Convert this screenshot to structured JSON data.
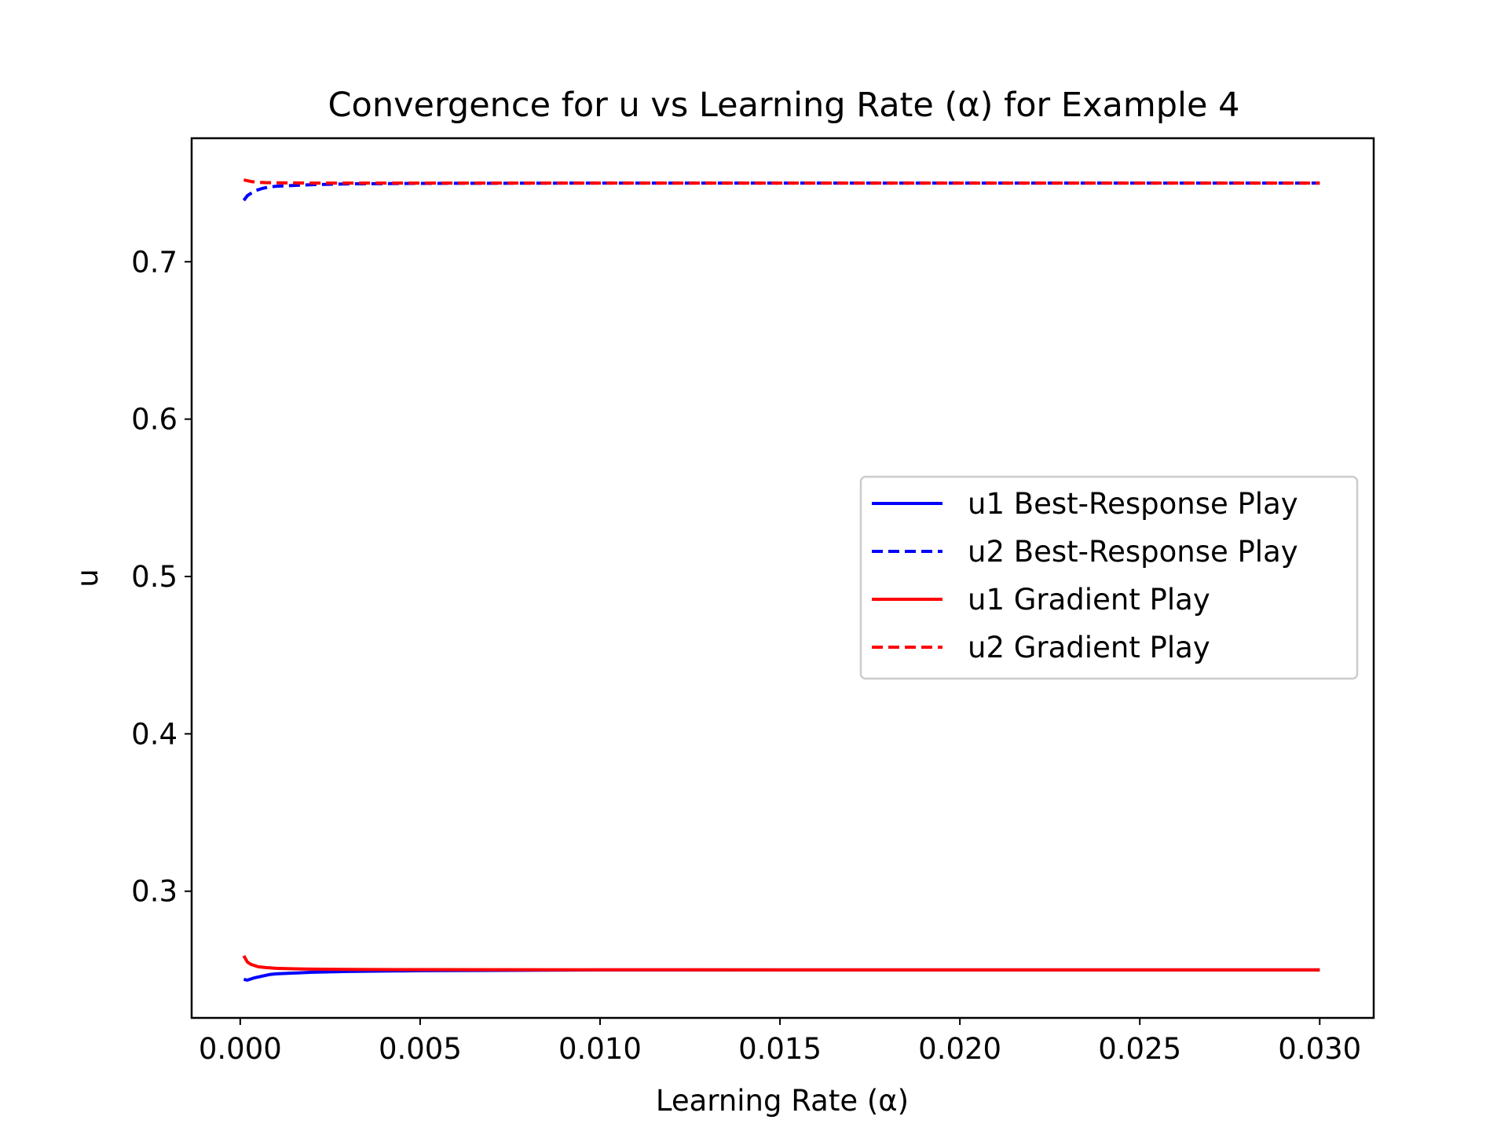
{
  "chart_data": {
    "type": "line",
    "title": "Convergence for u vs Learning Rate (α) for Example 4",
    "xlabel": "Learning Rate (α)",
    "ylabel": "u",
    "xlim": [
      -0.00135,
      0.0315
    ],
    "ylim": [
      0.2195,
      0.7785
    ],
    "xticks": [
      0.0,
      0.005,
      0.01,
      0.015,
      0.02,
      0.025,
      0.03
    ],
    "xtick_labels": [
      "0.000",
      "0.005",
      "0.010",
      "0.015",
      "0.020",
      "0.025",
      "0.030"
    ],
    "yticks": [
      0.3,
      0.4,
      0.5,
      0.6,
      0.7
    ],
    "ytick_labels": [
      "0.3",
      "0.4",
      "0.5",
      "0.6",
      "0.7"
    ],
    "grid": false,
    "legend_position": "center-right",
    "series": [
      {
        "name": "u1 Best-Response Play",
        "color": "#0000ff",
        "dash": "solid",
        "x": [
          0.0001,
          0.0002,
          0.0004,
          0.0006,
          0.0008,
          0.001,
          0.0015,
          0.002,
          0.003,
          0.005,
          0.01,
          0.015,
          0.02,
          0.025,
          0.03
        ],
        "y": [
          0.244,
          0.2435,
          0.245,
          0.246,
          0.247,
          0.2475,
          0.248,
          0.2485,
          0.249,
          0.2495,
          0.25,
          0.25,
          0.25,
          0.25,
          0.25
        ]
      },
      {
        "name": "u2 Best-Response Play",
        "color": "#0000ff",
        "dash": "dashed",
        "x": [
          0.0001,
          0.0002,
          0.0004,
          0.0006,
          0.0008,
          0.001,
          0.0015,
          0.002,
          0.003,
          0.005,
          0.01,
          0.015,
          0.02,
          0.025,
          0.03
        ],
        "y": [
          0.739,
          0.742,
          0.745,
          0.7465,
          0.7475,
          0.748,
          0.7485,
          0.749,
          0.7495,
          0.7498,
          0.75,
          0.75,
          0.75,
          0.75,
          0.75
        ]
      },
      {
        "name": "u1 Gradient Play",
        "color": "#ff0000",
        "dash": "solid",
        "x": [
          0.0001,
          0.0002,
          0.0003,
          0.0005,
          0.0007,
          0.001,
          0.0015,
          0.002,
          0.003,
          0.005,
          0.01,
          0.015,
          0.02,
          0.025,
          0.03
        ],
        "y": [
          0.259,
          0.255,
          0.2535,
          0.252,
          0.2515,
          0.251,
          0.2507,
          0.2505,
          0.2503,
          0.2502,
          0.2501,
          0.25,
          0.25,
          0.25,
          0.25
        ]
      },
      {
        "name": "u2 Gradient Play",
        "color": "#ff0000",
        "dash": "dashed",
        "x": [
          0.0001,
          0.0002,
          0.0003,
          0.0005,
          0.0007,
          0.001,
          0.0015,
          0.002,
          0.003,
          0.005,
          0.01,
          0.015,
          0.02,
          0.025,
          0.03
        ],
        "y": [
          0.752,
          0.7515,
          0.751,
          0.7505,
          0.7503,
          0.7502,
          0.7501,
          0.75,
          0.75,
          0.75,
          0.75,
          0.75,
          0.75,
          0.75,
          0.75
        ]
      }
    ]
  }
}
